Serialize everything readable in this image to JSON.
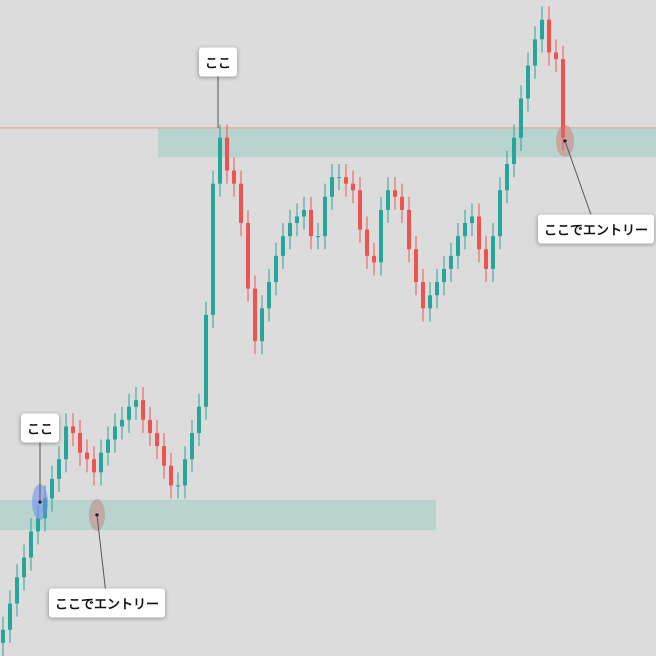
{
  "chart_data": {
    "type": "candlestick",
    "ylim": [
      0,
      100
    ],
    "up_color": "#26a69a",
    "down_color": "#ef5350",
    "level": 80.5,
    "level_color": "#e6a293",
    "zones": [
      {
        "low": 76,
        "high": 80.5
      },
      {
        "low": 19.2,
        "high": 23.8
      }
    ],
    "zone_color": "#b5d1cc",
    "open": [
      2,
      4,
      8,
      12,
      15,
      19,
      21,
      24,
      27,
      30,
      35,
      34,
      31,
      30,
      28,
      31,
      33,
      35,
      36,
      38,
      39,
      36,
      34,
      32,
      29,
      26,
      26,
      30,
      34,
      38,
      52,
      72,
      79,
      74,
      72,
      66,
      56,
      48,
      53,
      57,
      61,
      64,
      66,
      67,
      68,
      64,
      64,
      70,
      73,
      73,
      72,
      71,
      65,
      61,
      60,
      68,
      71,
      70,
      68,
      62,
      57,
      53,
      55,
      57,
      59,
      61,
      64,
      66,
      67,
      62,
      59,
      64,
      71,
      75,
      79,
      85,
      90,
      94,
      97,
      92,
      91
    ],
    "high": [
      6,
      10,
      14,
      17,
      21,
      23,
      26,
      29,
      32,
      37,
      37,
      36,
      33,
      32,
      33,
      35,
      37,
      38,
      40,
      41,
      41,
      38,
      36,
      34,
      31,
      28,
      32,
      36,
      40,
      54,
      74,
      81,
      81,
      76,
      74,
      68,
      58,
      55,
      59,
      63,
      66,
      68,
      69,
      70,
      70,
      66,
      72,
      75,
      75,
      75,
      74,
      73,
      67,
      63,
      70,
      73,
      73,
      72,
      70,
      64,
      59,
      57,
      59,
      61,
      63,
      66,
      68,
      69,
      69,
      64,
      66,
      73,
      77,
      81,
      87,
      92,
      96,
      99,
      99,
      94,
      93
    ],
    "low": [
      0,
      2,
      6,
      10,
      13,
      17,
      19,
      22,
      25,
      28,
      32,
      29,
      28,
      26,
      26,
      29,
      31,
      33,
      34,
      36,
      34,
      32,
      30,
      27,
      24,
      24,
      24,
      28,
      32,
      36,
      50,
      70,
      72,
      70,
      64,
      54,
      46,
      46,
      51,
      55,
      59,
      62,
      64,
      65,
      62,
      62,
      62,
      68,
      71,
      70,
      69,
      63,
      59,
      58,
      58,
      66,
      68,
      66,
      60,
      55,
      51,
      51,
      53,
      55,
      57,
      59,
      62,
      64,
      60,
      57,
      57,
      62,
      69,
      73,
      77,
      83,
      88,
      92,
      90,
      89,
      77
    ],
    "close": [
      4,
      8,
      12,
      15,
      19,
      21,
      24,
      27,
      30,
      35,
      34,
      31,
      30,
      28,
      31,
      33,
      35,
      36,
      38,
      39,
      36,
      34,
      32,
      29,
      26,
      26,
      30,
      34,
      38,
      52,
      72,
      79,
      74,
      72,
      66,
      56,
      48,
      53,
      57,
      61,
      64,
      66,
      67,
      68,
      64,
      64,
      70,
      73,
      73,
      72,
      71,
      65,
      61,
      60,
      68,
      71,
      70,
      68,
      62,
      57,
      53,
      55,
      57,
      59,
      61,
      64,
      66,
      67,
      62,
      59,
      64,
      71,
      75,
      79,
      85,
      90,
      94,
      97,
      92,
      91,
      79
    ],
    "annotations": [
      "ここ",
      "ここでエントリー",
      "ここ",
      "ここでエントリー"
    ]
  }
}
